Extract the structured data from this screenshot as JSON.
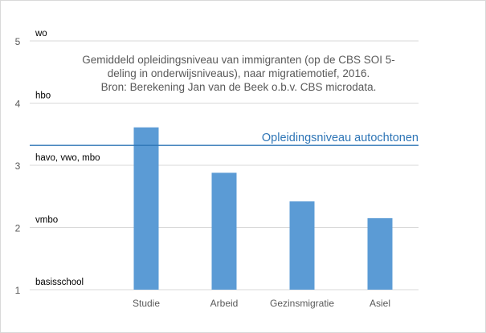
{
  "chart_data": {
    "type": "bar",
    "title_lines": [
      "Gemiddeld opleidingsniveau van immigranten (op de CBS SOI 5-",
      "deling in onderwijsniveaus), naar migratiemotief, 2016.",
      "Bron: Berekening Jan van de Beek o.b.v. CBS microdata."
    ],
    "categories": [
      "Studie",
      "Arbeid",
      "Gezinsmigratie",
      "Asiel"
    ],
    "values": [
      3.61,
      2.88,
      2.42,
      2.15
    ],
    "ylim": [
      1,
      5
    ],
    "yticks": [
      1,
      2,
      3,
      4,
      5
    ],
    "level_labels": [
      {
        "value": 1,
        "label": "basisschool"
      },
      {
        "value": 2,
        "label": "vmbo"
      },
      {
        "value": 3,
        "label": "havo, vwo, mbo"
      },
      {
        "value": 4,
        "label": "hbo"
      },
      {
        "value": 5,
        "label": "wo"
      }
    ],
    "reference_line": {
      "value": 3.32,
      "label": "Opleidingsniveau autochtonen"
    },
    "grid": true,
    "colors": {
      "bar": "#5b9bd5",
      "reference": "#2e75b6",
      "grid": "#d9d9d9",
      "text": "#595959",
      "label_text": "#000000"
    }
  }
}
